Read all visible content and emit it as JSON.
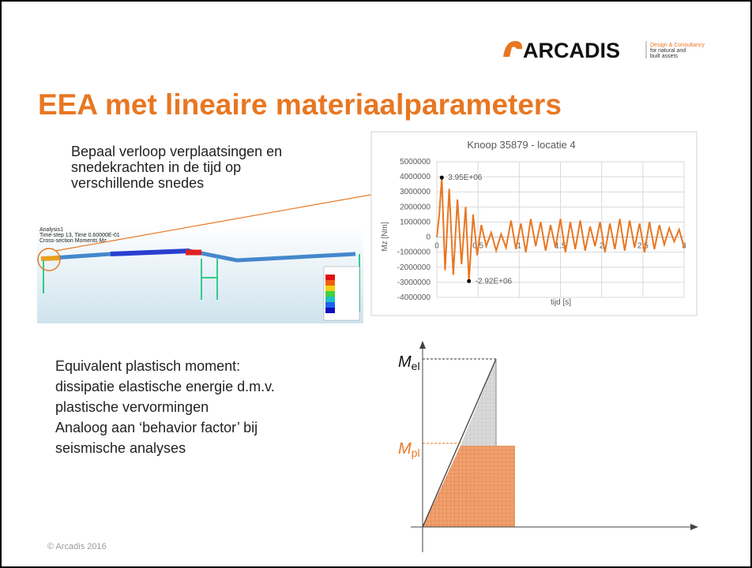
{
  "header": {
    "logo": "ARCADIS",
    "tagline": [
      "Design & Consultancy",
      "for natural and",
      "built assets"
    ]
  },
  "title": "EEA met lineaire materiaalparameters",
  "intro": [
    "Bepaal verloop verplaatsingen en",
    "snedekrachten in de tijd op",
    "verschillende snedes"
  ],
  "fem_image": {
    "lines": [
      "Analysis1",
      "Time-step 13, Time 0.60000E-01",
      "Cross-section Moments Mz"
    ]
  },
  "chart_data": {
    "type": "line",
    "title": "Knoop 35879 - locatie 4",
    "x_label": "tijd [s]",
    "y_label": "Mz [Nm]",
    "color": "#e87722",
    "grid": true,
    "xlim": [
      0,
      3
    ],
    "xticks": [
      0,
      0.5,
      1,
      1.5,
      2,
      2.5,
      3
    ],
    "ylim": [
      -4000000,
      5000000
    ],
    "yticks": [
      -4000000,
      -3000000,
      -2000000,
      -1000000,
      0,
      1000000,
      2000000,
      3000000,
      4000000,
      5000000
    ],
    "x": [
      0,
      0.03,
      0.06,
      0.1,
      0.15,
      0.2,
      0.25,
      0.3,
      0.35,
      0.39,
      0.44,
      0.49,
      0.54,
      0.6,
      0.66,
      0.72,
      0.78,
      0.84,
      0.9,
      0.96,
      1.02,
      1.08,
      1.14,
      1.2,
      1.26,
      1.32,
      1.38,
      1.44,
      1.5,
      1.56,
      1.62,
      1.68,
      1.74,
      1.8,
      1.86,
      1.92,
      1.98,
      2.04,
      2.1,
      2.16,
      2.22,
      2.28,
      2.34,
      2.4,
      2.46,
      2.52,
      2.58,
      2.64,
      2.7,
      2.76,
      2.82,
      2.88,
      2.94,
      3
    ],
    "values": [
      0,
      1500000,
      3950000,
      -2200000,
      3200000,
      -2500000,
      2500000,
      -1800000,
      2000000,
      -2920000,
      1500000,
      -1200000,
      800000,
      -600000,
      300000,
      -900000,
      200000,
      -700000,
      1100000,
      -800000,
      900000,
      -1000000,
      1200000,
      -600000,
      1000000,
      -900000,
      800000,
      -700000,
      1200000,
      -1000000,
      1000000,
      -800000,
      1100000,
      -900000,
      700000,
      -600000,
      1000000,
      -1000000,
      900000,
      -800000,
      1200000,
      -900000,
      1100000,
      -700000,
      900000,
      -1000000,
      1000000,
      -800000,
      800000,
      -500000,
      600000,
      -300000,
      500000,
      -700000
    ],
    "annotations": [
      {
        "x": 0.06,
        "y": 3950000,
        "label": "3.95E+06"
      },
      {
        "x": 0.39,
        "y": -2920000,
        "label": "-2.92E+06"
      }
    ]
  },
  "body": [
    "Equivalent plastisch moment:",
    "dissipatie elastische energie d.m.v.",
    "plastische vervormingen",
    "Analoog aan ‘behavior factor’ bij",
    "seismische analyses"
  ],
  "diagram": {
    "m_el": {
      "symbol": "M",
      "subscript": "el"
    },
    "m_pl": {
      "symbol": "M",
      "subscript": "pl"
    }
  },
  "footer": "© Arcadis 2016"
}
